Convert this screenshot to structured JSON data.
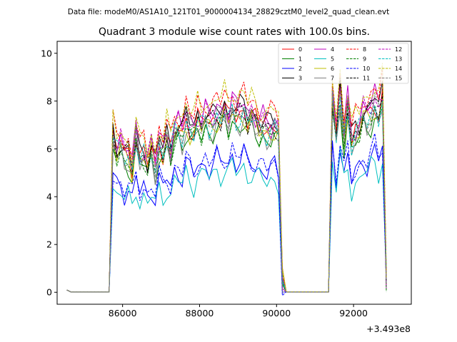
{
  "chart_data": {
    "type": "line",
    "suptitle": "Data file: modeM0/AS1A10_121T01_9000004134_28829cztM0_level2_quad_clean.evt",
    "title": "Quadrant 3 module wise count rates with 100.0s bins.",
    "xlabel": "",
    "ylabel": "",
    "offset_label": "+3.493e8",
    "xlim": [
      84300,
      93500
    ],
    "ylim": [
      -0.5,
      10.5
    ],
    "xticks": [
      86000,
      88000,
      90000,
      92000
    ],
    "xtick_labels": [
      "86000",
      "88000",
      "90000",
      "92000"
    ],
    "yticks": [
      0,
      2,
      4,
      6,
      8,
      10
    ],
    "ytick_labels": [
      "0",
      "2",
      "4",
      "6",
      "8",
      "10"
    ],
    "x_start": 84550,
    "bin_width": 100,
    "envelope": [
      0.1,
      0.02,
      0.02,
      0.02,
      0.02,
      0.02,
      0.02,
      0.02,
      0.02,
      0.02,
      0.02,
      0.02,
      6.5,
      5.9,
      6.2,
      5.7,
      5.8,
      5.2,
      6.6,
      5.6,
      5.8,
      5.4,
      6.0,
      5.3,
      6.3,
      5.9,
      6.5,
      5.8,
      6.8,
      6.9,
      6.6,
      7.3,
      6.9,
      6.7,
      7.2,
      7.0,
      7.4,
      7.1,
      7.2,
      7.5,
      7.3,
      7.6,
      7.2,
      7.8,
      7.4,
      7.5,
      7.7,
      7.2,
      7.4,
      7.1,
      6.9,
      7.0,
      6.8,
      6.9,
      7.0,
      6.7,
      0.5,
      0.02,
      0.02,
      0.02,
      0.02,
      0.02,
      0.02,
      0.02,
      0.02,
      0.02,
      0.02,
      0.02,
      0.02,
      8.2,
      6.5,
      8.4,
      6.6,
      7.8,
      6.3,
      6.7,
      6.9,
      7.5,
      7.3,
      7.6,
      8.0,
      7.5,
      8.2,
      0.5
    ],
    "series": [
      {
        "name": "0",
        "color": "#ff0000",
        "dash": "solid",
        "scale": 1.0,
        "phase": 0
      },
      {
        "name": "1",
        "color": "#008000",
        "dash": "solid",
        "scale": 0.93,
        "phase": 1
      },
      {
        "name": "2",
        "color": "#0000ff",
        "dash": "solid",
        "scale": 0.74,
        "phase": 2
      },
      {
        "name": "3",
        "color": "#000000",
        "dash": "solid",
        "scale": 1.03,
        "phase": 3
      },
      {
        "name": "4",
        "color": "#bf00bf",
        "dash": "solid",
        "scale": 1.04,
        "phase": 4
      },
      {
        "name": "5",
        "color": "#00bfbf",
        "dash": "solid",
        "scale": 0.68,
        "phase": 5
      },
      {
        "name": "6",
        "color": "#bfbf00",
        "dash": "solid",
        "scale": 0.97,
        "phase": 6
      },
      {
        "name": "7",
        "color": "#808080",
        "dash": "solid",
        "scale": 0.95,
        "phase": 7
      },
      {
        "name": "8",
        "color": "#ff0000",
        "dash": "dashed",
        "scale": 1.09,
        "phase": 8
      },
      {
        "name": "9",
        "color": "#008000",
        "dash": "dashed",
        "scale": 0.96,
        "phase": 9
      },
      {
        "name": "10",
        "color": "#0000ff",
        "dash": "dashed",
        "scale": 0.76,
        "phase": 10
      },
      {
        "name": "11",
        "color": "#000000",
        "dash": "dashed",
        "scale": 1.0,
        "phase": 11
      },
      {
        "name": "12",
        "color": "#bf00bf",
        "dash": "dashed",
        "scale": 1.02,
        "phase": 12
      },
      {
        "name": "13",
        "color": "#00bfbf",
        "dash": "dashed",
        "scale": 0.98,
        "phase": 13
      },
      {
        "name": "14",
        "color": "#bfbf00",
        "dash": "dashed",
        "scale": 1.1,
        "phase": 14
      },
      {
        "name": "15",
        "color": "#808080",
        "dash": "dashed",
        "scale": 0.99,
        "phase": 15
      }
    ]
  }
}
